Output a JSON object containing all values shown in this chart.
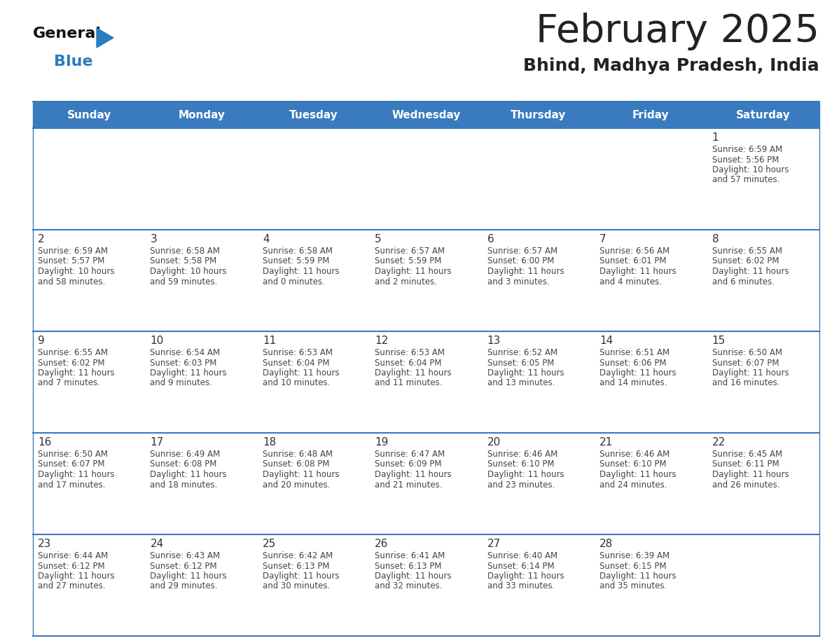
{
  "title": "February 2025",
  "subtitle": "Bhind, Madhya Pradesh, India",
  "header_color": "#3a7bbf",
  "header_text_color": "#ffffff",
  "day_names": [
    "Sunday",
    "Monday",
    "Tuesday",
    "Wednesday",
    "Thursday",
    "Friday",
    "Saturday"
  ],
  "cell_bg_color": "#ffffff",
  "border_color": "#3a7bbf",
  "text_color": "#222222",
  "day_num_color": "#333333",
  "info_text_color": "#444444",
  "logo_general_color": "#111111",
  "logo_blue_color": "#2a7bbf",
  "logo_triangle_color": "#2a7bbf",
  "days": [
    {
      "date": 1,
      "col": 6,
      "row": 0,
      "sunrise": "6:59 AM",
      "sunset": "5:56 PM",
      "daylight": "10 hours and 57 minutes."
    },
    {
      "date": 2,
      "col": 0,
      "row": 1,
      "sunrise": "6:59 AM",
      "sunset": "5:57 PM",
      "daylight": "10 hours and 58 minutes."
    },
    {
      "date": 3,
      "col": 1,
      "row": 1,
      "sunrise": "6:58 AM",
      "sunset": "5:58 PM",
      "daylight": "10 hours and 59 minutes."
    },
    {
      "date": 4,
      "col": 2,
      "row": 1,
      "sunrise": "6:58 AM",
      "sunset": "5:59 PM",
      "daylight": "11 hours and 0 minutes."
    },
    {
      "date": 5,
      "col": 3,
      "row": 1,
      "sunrise": "6:57 AM",
      "sunset": "5:59 PM",
      "daylight": "11 hours and 2 minutes."
    },
    {
      "date": 6,
      "col": 4,
      "row": 1,
      "sunrise": "6:57 AM",
      "sunset": "6:00 PM",
      "daylight": "11 hours and 3 minutes."
    },
    {
      "date": 7,
      "col": 5,
      "row": 1,
      "sunrise": "6:56 AM",
      "sunset": "6:01 PM",
      "daylight": "11 hours and 4 minutes."
    },
    {
      "date": 8,
      "col": 6,
      "row": 1,
      "sunrise": "6:55 AM",
      "sunset": "6:02 PM",
      "daylight": "11 hours and 6 minutes."
    },
    {
      "date": 9,
      "col": 0,
      "row": 2,
      "sunrise": "6:55 AM",
      "sunset": "6:02 PM",
      "daylight": "11 hours and 7 minutes."
    },
    {
      "date": 10,
      "col": 1,
      "row": 2,
      "sunrise": "6:54 AM",
      "sunset": "6:03 PM",
      "daylight": "11 hours and 9 minutes."
    },
    {
      "date": 11,
      "col": 2,
      "row": 2,
      "sunrise": "6:53 AM",
      "sunset": "6:04 PM",
      "daylight": "11 hours and 10 minutes."
    },
    {
      "date": 12,
      "col": 3,
      "row": 2,
      "sunrise": "6:53 AM",
      "sunset": "6:04 PM",
      "daylight": "11 hours and 11 minutes."
    },
    {
      "date": 13,
      "col": 4,
      "row": 2,
      "sunrise": "6:52 AM",
      "sunset": "6:05 PM",
      "daylight": "11 hours and 13 minutes."
    },
    {
      "date": 14,
      "col": 5,
      "row": 2,
      "sunrise": "6:51 AM",
      "sunset": "6:06 PM",
      "daylight": "11 hours and 14 minutes."
    },
    {
      "date": 15,
      "col": 6,
      "row": 2,
      "sunrise": "6:50 AM",
      "sunset": "6:07 PM",
      "daylight": "11 hours and 16 minutes."
    },
    {
      "date": 16,
      "col": 0,
      "row": 3,
      "sunrise": "6:50 AM",
      "sunset": "6:07 PM",
      "daylight": "11 hours and 17 minutes."
    },
    {
      "date": 17,
      "col": 1,
      "row": 3,
      "sunrise": "6:49 AM",
      "sunset": "6:08 PM",
      "daylight": "11 hours and 18 minutes."
    },
    {
      "date": 18,
      "col": 2,
      "row": 3,
      "sunrise": "6:48 AM",
      "sunset": "6:08 PM",
      "daylight": "11 hours and 20 minutes."
    },
    {
      "date": 19,
      "col": 3,
      "row": 3,
      "sunrise": "6:47 AM",
      "sunset": "6:09 PM",
      "daylight": "11 hours and 21 minutes."
    },
    {
      "date": 20,
      "col": 4,
      "row": 3,
      "sunrise": "6:46 AM",
      "sunset": "6:10 PM",
      "daylight": "11 hours and 23 minutes."
    },
    {
      "date": 21,
      "col": 5,
      "row": 3,
      "sunrise": "6:46 AM",
      "sunset": "6:10 PM",
      "daylight": "11 hours and 24 minutes."
    },
    {
      "date": 22,
      "col": 6,
      "row": 3,
      "sunrise": "6:45 AM",
      "sunset": "6:11 PM",
      "daylight": "11 hours and 26 minutes."
    },
    {
      "date": 23,
      "col": 0,
      "row": 4,
      "sunrise": "6:44 AM",
      "sunset": "6:12 PM",
      "daylight": "11 hours and 27 minutes."
    },
    {
      "date": 24,
      "col": 1,
      "row": 4,
      "sunrise": "6:43 AM",
      "sunset": "6:12 PM",
      "daylight": "11 hours and 29 minutes."
    },
    {
      "date": 25,
      "col": 2,
      "row": 4,
      "sunrise": "6:42 AM",
      "sunset": "6:13 PM",
      "daylight": "11 hours and 30 minutes."
    },
    {
      "date": 26,
      "col": 3,
      "row": 4,
      "sunrise": "6:41 AM",
      "sunset": "6:13 PM",
      "daylight": "11 hours and 32 minutes."
    },
    {
      "date": 27,
      "col": 4,
      "row": 4,
      "sunrise": "6:40 AM",
      "sunset": "6:14 PM",
      "daylight": "11 hours and 33 minutes."
    },
    {
      "date": 28,
      "col": 5,
      "row": 4,
      "sunrise": "6:39 AM",
      "sunset": "6:15 PM",
      "daylight": "11 hours and 35 minutes."
    }
  ],
  "num_rows": 5,
  "figsize": [
    11.88,
    9.18
  ],
  "dpi": 100
}
